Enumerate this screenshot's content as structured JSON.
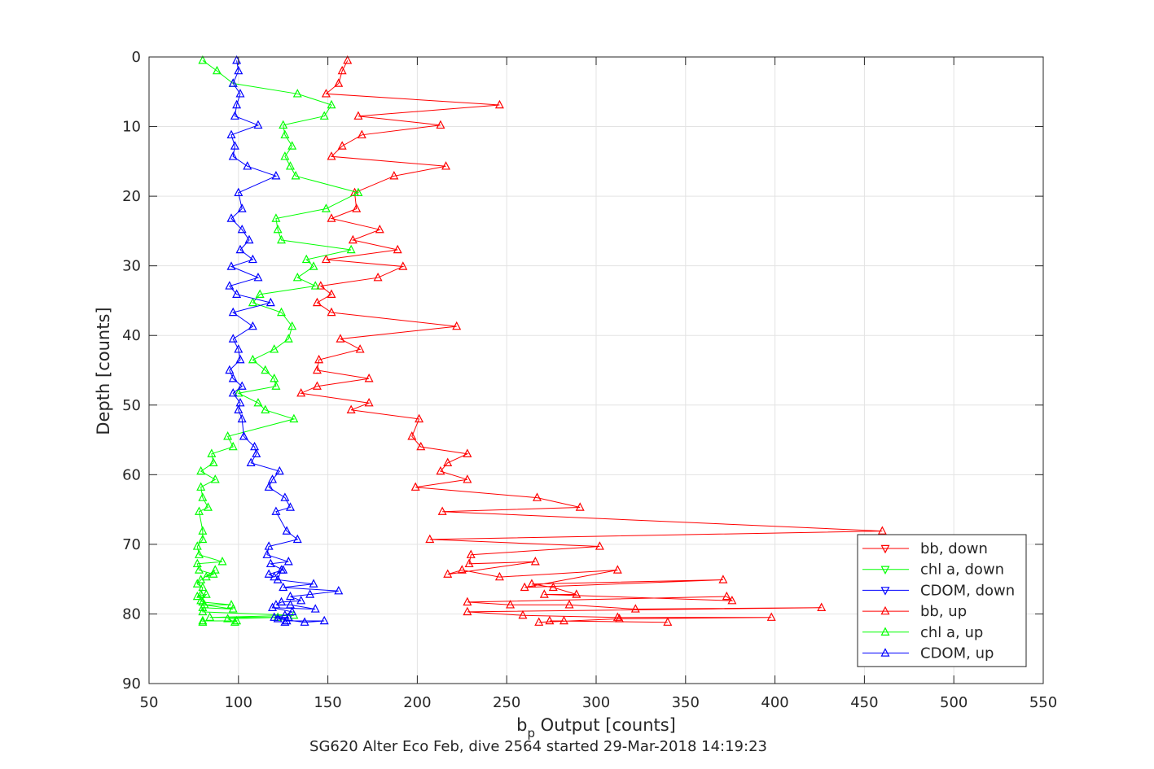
{
  "chart_data": {
    "type": "line",
    "xlabel_main": "b",
    "xlabel_sub": "p",
    "xlabel_rest": " Output [counts]",
    "ylabel": "Depth [counts]",
    "caption": "SG620 Alter Eco Feb, dive 2564 started 29-Mar-2018 14:19:23",
    "xlim": [
      50,
      550
    ],
    "ylim": [
      0,
      90
    ],
    "y_reversed": true,
    "grid": true,
    "legend_position": "lower-right",
    "xticks": [
      "50",
      "100",
      "150",
      "200",
      "250",
      "300",
      "350",
      "400",
      "450",
      "500",
      "550"
    ],
    "yticks": [
      "0",
      "10",
      "20",
      "30",
      "40",
      "50",
      "60",
      "70",
      "80",
      "90"
    ],
    "series": [
      {
        "name": "bb, down",
        "color": "#ff0000",
        "marker": "triangle-down",
        "points": []
      },
      {
        "name": "chl a, down",
        "color": "#00ff00",
        "marker": "triangle-down",
        "points": []
      },
      {
        "name": "CDOM, down",
        "color": "#0000ff",
        "marker": "triangle-down",
        "points": []
      },
      {
        "name": "bb, up",
        "color": "#ff0000",
        "marker": "triangle-up",
        "points": [
          [
            161,
            0.5
          ],
          [
            158,
            2
          ],
          [
            156,
            3.8
          ],
          [
            149,
            5.3
          ],
          [
            246,
            6.9
          ],
          [
            167,
            8.5
          ],
          [
            213,
            9.8
          ],
          [
            169,
            11.2
          ],
          [
            158,
            12.8
          ],
          [
            152,
            14.3
          ],
          [
            216,
            15.7
          ],
          [
            187,
            17.1
          ],
          [
            165,
            19.5
          ],
          [
            166,
            21.8
          ],
          [
            152,
            23.2
          ],
          [
            179,
            24.8
          ],
          [
            164,
            26.3
          ],
          [
            189,
            27.7
          ],
          [
            149,
            29.1
          ],
          [
            192,
            30.1
          ],
          [
            178,
            31.7
          ],
          [
            146,
            32.9
          ],
          [
            152,
            34.1
          ],
          [
            144,
            35.3
          ],
          [
            152,
            36.7
          ],
          [
            222,
            38.7
          ],
          [
            157,
            40.5
          ],
          [
            168,
            42
          ],
          [
            145,
            43.5
          ],
          [
            144,
            45
          ],
          [
            173,
            46.2
          ],
          [
            144,
            47.3
          ],
          [
            135,
            48.3
          ],
          [
            173,
            49.7
          ],
          [
            163,
            50.7
          ],
          [
            201,
            52
          ],
          [
            197,
            54.5
          ],
          [
            202,
            56
          ],
          [
            228,
            57
          ],
          [
            217,
            58.3
          ],
          [
            213,
            59.5
          ],
          [
            228,
            60.7
          ],
          [
            199,
            61.8
          ],
          [
            267,
            63.3
          ],
          [
            291,
            64.7
          ],
          [
            214,
            65.3
          ],
          [
            460,
            68.1
          ],
          [
            207,
            69.3
          ],
          [
            302,
            70.3
          ],
          [
            230,
            71.5
          ],
          [
            229,
            72.8
          ],
          [
            266,
            72.5
          ],
          [
            217,
            74.3
          ],
          [
            225,
            73.7
          ],
          [
            246,
            74.7
          ],
          [
            312,
            73.7
          ],
          [
            260,
            76.2
          ],
          [
            371,
            75.1
          ],
          [
            264,
            75.7
          ],
          [
            276,
            76.2
          ],
          [
            289,
            77.2
          ],
          [
            271,
            77.2
          ],
          [
            376,
            78.1
          ],
          [
            373,
            77.5
          ],
          [
            228,
            78.3
          ],
          [
            252,
            78.7
          ],
          [
            285,
            78.7
          ],
          [
            322,
            79.3
          ],
          [
            426,
            79.1
          ],
          [
            228,
            79.7
          ],
          [
            259,
            80.2
          ],
          [
            312,
            80.5
          ],
          [
            398,
            80.5
          ],
          [
            313,
            80.7
          ],
          [
            268,
            81.2
          ],
          [
            282,
            81
          ],
          [
            274,
            81
          ],
          [
            340,
            81.2
          ]
        ]
      },
      {
        "name": "chl a, up",
        "color": "#00ff00",
        "marker": "triangle-up",
        "points": [
          [
            80,
            0.5
          ],
          [
            88,
            2
          ],
          [
            97,
            3.8
          ],
          [
            133,
            5.3
          ],
          [
            152,
            6.9
          ],
          [
            148,
            8.5
          ],
          [
            125,
            9.8
          ],
          [
            126,
            11.2
          ],
          [
            130,
            12.8
          ],
          [
            126,
            14.3
          ],
          [
            129,
            15.7
          ],
          [
            132,
            17.1
          ],
          [
            167,
            19.5
          ],
          [
            149,
            21.8
          ],
          [
            121,
            23.2
          ],
          [
            122,
            24.8
          ],
          [
            124,
            26.3
          ],
          [
            163,
            27.7
          ],
          [
            138,
            29.1
          ],
          [
            142,
            30.1
          ],
          [
            133,
            31.7
          ],
          [
            143,
            32.9
          ],
          [
            112,
            34.1
          ],
          [
            108,
            35.3
          ],
          [
            124,
            36.7
          ],
          [
            130,
            38.7
          ],
          [
            128,
            40.5
          ],
          [
            120,
            42
          ],
          [
            108,
            43.5
          ],
          [
            115,
            45
          ],
          [
            120,
            46.2
          ],
          [
            121,
            47.3
          ],
          [
            100,
            48.3
          ],
          [
            111,
            49.7
          ],
          [
            115,
            50.7
          ],
          [
            131,
            52
          ],
          [
            94,
            54.5
          ],
          [
            97,
            56
          ],
          [
            85,
            57
          ],
          [
            86,
            58.3
          ],
          [
            79,
            59.5
          ],
          [
            87,
            60.7
          ],
          [
            79,
            61.8
          ],
          [
            80,
            63.3
          ],
          [
            83,
            64.7
          ],
          [
            78,
            65.3
          ],
          [
            80,
            68.1
          ],
          [
            80,
            69.3
          ],
          [
            77,
            70.3
          ],
          [
            78,
            71.5
          ],
          [
            91,
            72.5
          ],
          [
            77,
            72.8
          ],
          [
            78,
            73.7
          ],
          [
            86,
            74.3
          ],
          [
            82,
            74.7
          ],
          [
            87,
            73.7
          ],
          [
            79,
            75.1
          ],
          [
            77,
            75.7
          ],
          [
            80,
            76.2
          ],
          [
            79,
            77.2
          ],
          [
            77,
            77.5
          ],
          [
            82,
            77.2
          ],
          [
            79,
            78.1
          ],
          [
            80,
            78.3
          ],
          [
            96,
            78.7
          ],
          [
            81,
            78.7
          ],
          [
            97,
            79.3
          ],
          [
            80,
            79.1
          ],
          [
            80,
            79.7
          ],
          [
            131,
            80.2
          ],
          [
            84,
            80.5
          ],
          [
            122,
            80.5
          ],
          [
            94,
            80.7
          ],
          [
            98,
            81.2
          ],
          [
            99,
            81
          ],
          [
            80,
            81
          ],
          [
            80,
            81.2
          ]
        ]
      },
      {
        "name": "CDOM, up",
        "color": "#0000ff",
        "marker": "triangle-up",
        "points": [
          [
            99,
            0.5
          ],
          [
            100,
            2
          ],
          [
            97,
            3.8
          ],
          [
            101,
            5.3
          ],
          [
            99,
            6.9
          ],
          [
            98,
            8.5
          ],
          [
            111,
            9.8
          ],
          [
            96,
            11.2
          ],
          [
            98,
            12.8
          ],
          [
            97,
            14.3
          ],
          [
            105,
            15.7
          ],
          [
            121,
            17.1
          ],
          [
            100,
            19.5
          ],
          [
            102,
            21.8
          ],
          [
            96,
            23.2
          ],
          [
            102,
            24.8
          ],
          [
            106,
            26.3
          ],
          [
            101,
            27.7
          ],
          [
            108,
            29.1
          ],
          [
            96,
            30.1
          ],
          [
            111,
            31.7
          ],
          [
            95,
            32.9
          ],
          [
            99,
            34.1
          ],
          [
            118,
            35.3
          ],
          [
            97,
            36.7
          ],
          [
            108,
            38.7
          ],
          [
            97,
            40.5
          ],
          [
            100,
            42
          ],
          [
            101,
            43.5
          ],
          [
            95,
            45
          ],
          [
            97,
            46.2
          ],
          [
            102,
            47.3
          ],
          [
            97,
            48.3
          ],
          [
            101,
            49.7
          ],
          [
            100,
            50.7
          ],
          [
            102,
            52
          ],
          [
            103,
            54.5
          ],
          [
            109,
            56
          ],
          [
            110,
            57
          ],
          [
            107,
            58.3
          ],
          [
            123,
            59.5
          ],
          [
            119,
            60.7
          ],
          [
            117,
            61.8
          ],
          [
            126,
            63.3
          ],
          [
            129,
            64.7
          ],
          [
            121,
            65.3
          ],
          [
            127,
            68.1
          ],
          [
            133,
            69.3
          ],
          [
            117,
            70.3
          ],
          [
            116,
            71.5
          ],
          [
            128,
            72.5
          ],
          [
            118,
            72.8
          ],
          [
            125,
            73.7
          ],
          [
            117,
            74.3
          ],
          [
            120,
            74.7
          ],
          [
            124,
            73.7
          ],
          [
            122,
            75.1
          ],
          [
            142,
            75.7
          ],
          [
            125,
            76.2
          ],
          [
            156,
            76.7
          ],
          [
            140,
            77.2
          ],
          [
            129,
            77.5
          ],
          [
            135,
            78.1
          ],
          [
            124,
            78.3
          ],
          [
            121,
            78.7
          ],
          [
            129,
            78.7
          ],
          [
            143,
            79.3
          ],
          [
            119,
            79.1
          ],
          [
            130,
            79.7
          ],
          [
            126,
            80.2
          ],
          [
            120,
            80.5
          ],
          [
            128,
            80.5
          ],
          [
            122,
            80.7
          ],
          [
            137,
            81.2
          ],
          [
            148,
            81
          ],
          [
            127,
            81
          ],
          [
            126,
            81.2
          ]
        ]
      }
    ]
  }
}
